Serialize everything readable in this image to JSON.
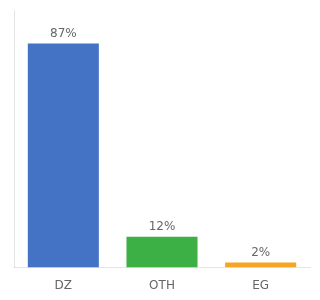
{
  "chart_data": {
    "type": "bar",
    "categories": [
      "DZ",
      "OTH",
      "EG"
    ],
    "values": [
      87,
      12,
      2
    ],
    "value_labels": [
      "87%",
      "12%",
      "2%"
    ],
    "colors": [
      "#4472c4",
      "#3cb044",
      "#f5a623"
    ],
    "ylim": [
      0,
      100
    ],
    "grid": false,
    "data_labels": true,
    "tick_labels": "x"
  }
}
